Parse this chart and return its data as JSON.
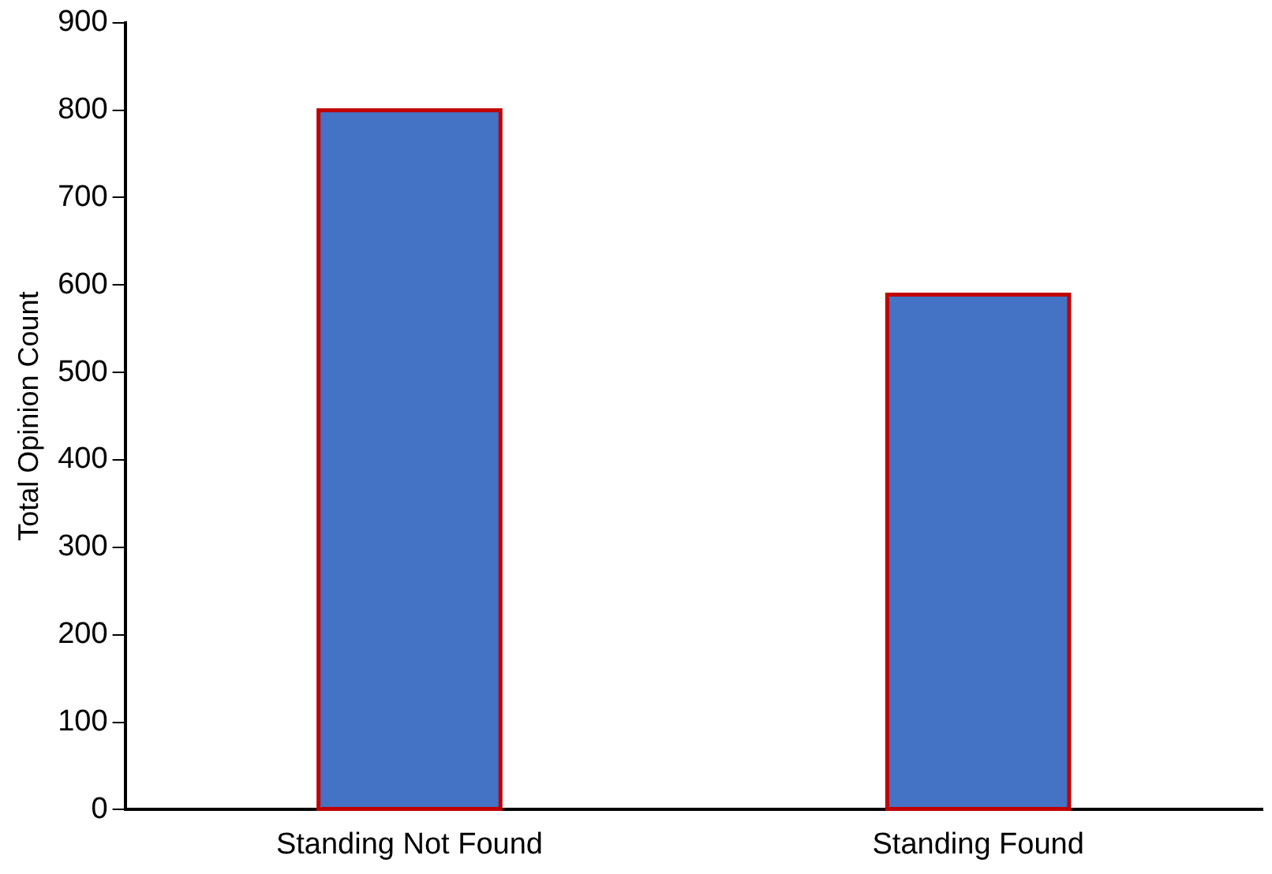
{
  "chart_data": {
    "type": "bar",
    "ylabel": "Total Opinion Count",
    "categories": [
      "Standing Not Found",
      "Standing Found"
    ],
    "values": [
      800,
      589
    ],
    "color": "#4472c4",
    "ylim": [
      0,
      900
    ],
    "yticks": [
      0,
      100,
      200,
      300,
      400,
      500,
      600,
      700,
      800,
      900
    ],
    "grid": false,
    "legend": false
  }
}
